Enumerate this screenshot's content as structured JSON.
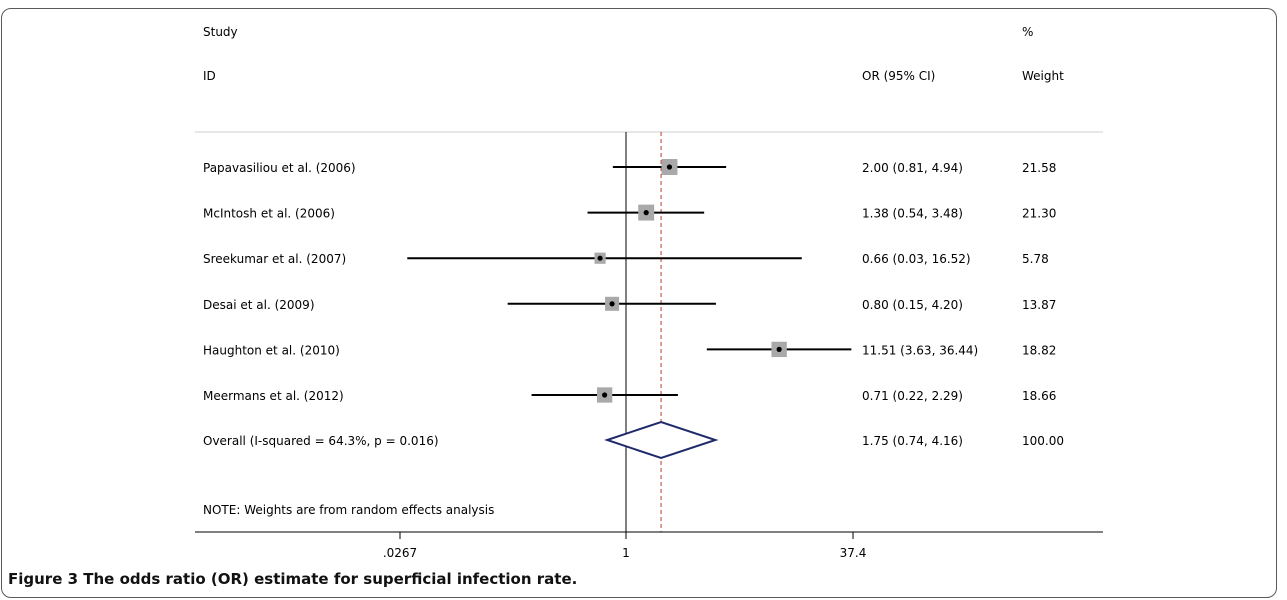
{
  "chart_data": {
    "type": "forest",
    "header": {
      "study_top": "Study",
      "study_bottom": "ID",
      "estimate_col": "OR (95% CI)",
      "weight_top": "%",
      "weight_bottom": "Weight"
    },
    "studies": [
      {
        "label": "Papavasiliou et al. (2006)",
        "or": 2.0,
        "lo": 0.81,
        "hi": 4.94,
        "ci_text": "2.00 (0.81, 4.94)",
        "weight": 21.58,
        "weight_text": "21.58"
      },
      {
        "label": "McIntosh et al. (2006)",
        "or": 1.38,
        "lo": 0.54,
        "hi": 3.48,
        "ci_text": "1.38 (0.54, 3.48)",
        "weight": 21.3,
        "weight_text": "21.30"
      },
      {
        "label": "Sreekumar et al. (2007)",
        "or": 0.66,
        "lo": 0.03,
        "hi": 16.52,
        "ci_text": "0.66 (0.03, 16.52)",
        "weight": 5.78,
        "weight_text": "5.78"
      },
      {
        "label": "Desai et al. (2009)",
        "or": 0.8,
        "lo": 0.15,
        "hi": 4.2,
        "ci_text": "0.80 (0.15, 4.20)",
        "weight": 13.87,
        "weight_text": "13.87"
      },
      {
        "label": "Haughton et al. (2010)",
        "or": 11.51,
        "lo": 3.63,
        "hi": 36.44,
        "ci_text": "11.51 (3.63, 36.44)",
        "weight": 18.82,
        "weight_text": "18.82"
      },
      {
        "label": "Meermans et al. (2012)",
        "or": 0.71,
        "lo": 0.22,
        "hi": 2.29,
        "ci_text": "0.71 (0.22, 2.29)",
        "weight": 18.66,
        "weight_text": "18.66"
      }
    ],
    "overall": {
      "label": "Overall  (I-squared = 64.3%, p = 0.016)",
      "or": 1.75,
      "lo": 0.74,
      "hi": 4.16,
      "ci_text": "1.75 (0.74, 4.16)",
      "weight_text": "100.00"
    },
    "note": "NOTE: Weights are from random effects analysis",
    "x_scale": "log",
    "x_range": [
      0.0267,
      37.4
    ],
    "null_value": 1,
    "x_ticks": [
      {
        "value": 0.0267,
        "label": ".0267"
      },
      {
        "value": 1,
        "label": "1"
      },
      {
        "value": 37.4,
        "label": "37.4"
      }
    ],
    "colors": {
      "ci_line": "#000000",
      "box": "#a9a9a9",
      "diamond": "#1f2a6b",
      "overall_line": "#c0392b"
    }
  },
  "caption": {
    "figure_label": "Figure 3",
    "text": " The odds ratio (OR) estimate for superficial infection rate."
  }
}
